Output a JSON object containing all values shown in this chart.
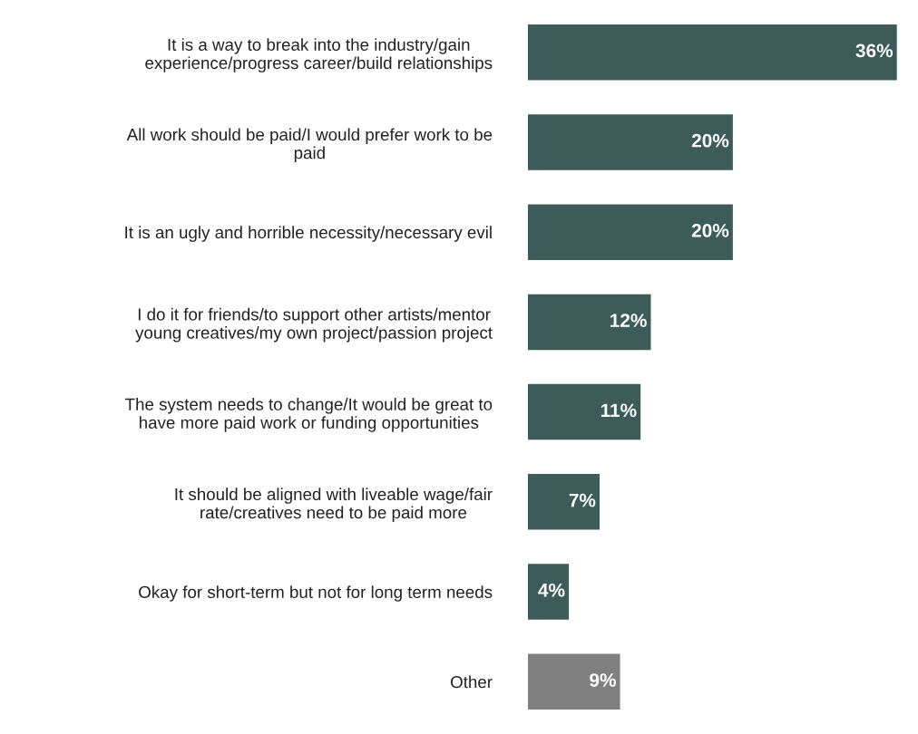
{
  "chart_data": {
    "type": "bar",
    "orientation": "horizontal",
    "categories": [
      "It is a way to break into the industry/gain\nexperience/progress career/build relationships",
      "All work should be paid/I would prefer work to be\npaid",
      "It is an ugly and horrible necessity/necessary evil",
      "I do it for friends/to support other artists/mentor\nyoung creatives/my own project/passion project",
      "The system needs to change/It would be great to\nhave more paid work or funding opportunities",
      "It should be aligned with liveable wage/fair\nrate/creatives need to be paid more",
      "Okay for short-term but not for long term needs",
      "Other"
    ],
    "values": [
      36,
      20,
      20,
      12,
      11,
      7,
      4,
      9
    ],
    "value_labels": [
      "36%",
      "20%",
      "20%",
      "12%",
      "11%",
      "7%",
      "4%",
      "9%"
    ],
    "colors": [
      "#3d5b59",
      "#3d5b59",
      "#3d5b59",
      "#3d5b59",
      "#3d5b59",
      "#3d5b59",
      "#3d5b59",
      "#808080"
    ],
    "grid": false,
    "legend": false
  }
}
